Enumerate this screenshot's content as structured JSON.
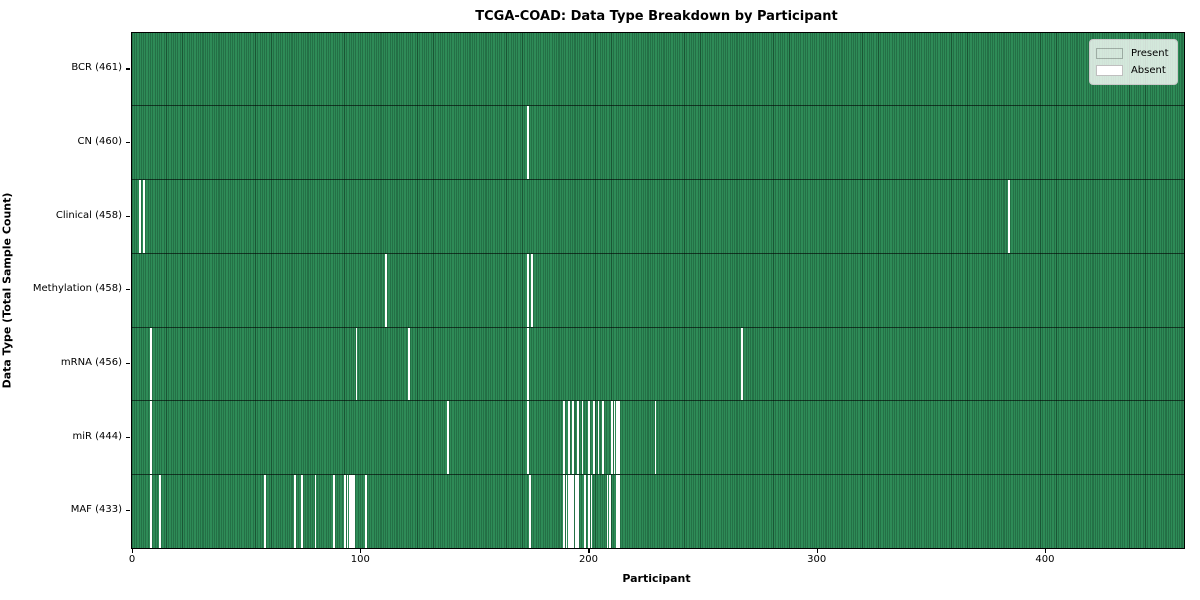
{
  "title": "TCGA-COAD: Data Type Breakdown by Participant",
  "axes": {
    "x_label": "Participant",
    "y_label": "Data Type (Total Sample Count)"
  },
  "legend": {
    "items": [
      {
        "label": "Present",
        "color": "#2e8b57"
      },
      {
        "label": "Absent",
        "color": "#ffffff"
      }
    ]
  },
  "colors": {
    "present": "#2e8b57",
    "absent": "#ffffff",
    "cell_edge": "rgba(7,37,21,0.52)",
    "row_separator": "rgba(0,0,0,0.6)",
    "plot_border": "#000000"
  },
  "chart_data": {
    "type": "heatmap",
    "title": "TCGA-COAD: Data Type Breakdown by Participant",
    "xlabel": "Participant",
    "ylabel": "Data Type (Total Sample Count)",
    "x_range": [
      0,
      461
    ],
    "n_participants": 461,
    "x_ticks": [
      0,
      100,
      200,
      300,
      400
    ],
    "legend_position": "upper right",
    "legend_entries": [
      "Present",
      "Absent"
    ],
    "grid": false,
    "rows": [
      {
        "name": "BCR",
        "label": "BCR (461)",
        "present_count": 461,
        "absent_participants": []
      },
      {
        "name": "CN",
        "label": "CN (460)",
        "present_count": 460,
        "absent_participants": [
          173
        ]
      },
      {
        "name": "Clinical",
        "label": "Clinical (458)",
        "present_count": 458,
        "absent_participants": [
          3,
          5,
          384
        ]
      },
      {
        "name": "Methylation",
        "label": "Methylation (458)",
        "present_count": 458,
        "absent_participants": [
          111,
          173,
          175
        ]
      },
      {
        "name": "mRNA",
        "label": "mRNA (456)",
        "present_count": 456,
        "absent_participants": [
          8,
          98,
          121,
          173,
          267
        ]
      },
      {
        "name": "miR",
        "label": "miR (444)",
        "present_count": 444,
        "absent_participants": [
          8,
          138,
          173,
          189,
          191,
          193,
          195,
          197,
          200,
          202,
          204,
          206,
          210,
          211,
          212,
          213,
          229
        ]
      },
      {
        "name": "MAF",
        "label": "MAF (433)",
        "present_count": 433,
        "absent_participants": [
          8,
          12,
          58,
          71,
          74,
          80,
          88,
          93,
          94,
          95,
          96,
          97,
          102,
          174,
          189,
          190,
          191,
          192,
          193,
          194,
          195,
          198,
          200,
          201,
          208,
          209,
          212,
          213
        ]
      }
    ]
  }
}
